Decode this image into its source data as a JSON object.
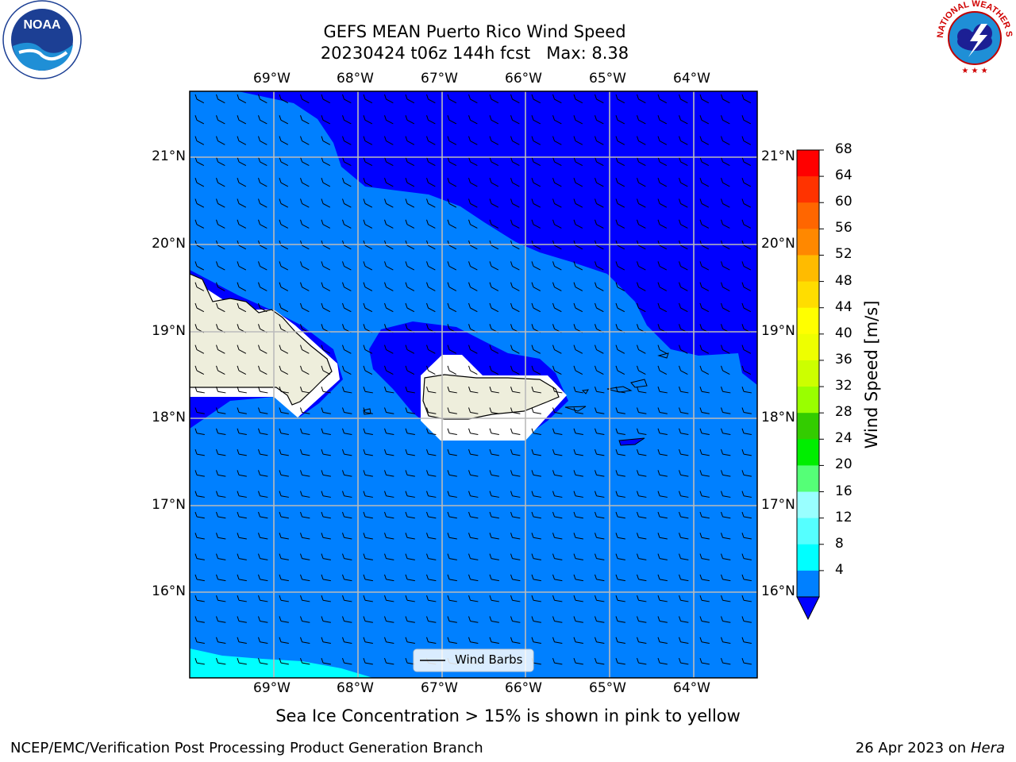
{
  "title": {
    "line1": "GEFS MEAN Puerto Rico Wind Speed",
    "line2": "20230424 t06z 144h fcst   Max: 8.38"
  },
  "logos": {
    "noara_text": "NOAA",
    "noara_ring_text": "NATIONAL OCEANIC AND ATMOSPHERIC ADMINISTRATION · U.S. DEPARTMENT OF COMMERCE",
    "nws_ring_text": "NATIONAL WEATHER SERVICE",
    "noara_icon": "noaa-logo",
    "nws_icon": "nws-logo"
  },
  "map": {
    "lon_labels": [
      "69°W",
      "68°W",
      "67°W",
      "66°W",
      "65°W",
      "64°W"
    ],
    "lat_labels": [
      "21°N",
      "20°N",
      "19°N",
      "18°N",
      "17°N",
      "16°N"
    ],
    "legend_label": "Wind Barbs",
    "colors": {
      "wind_4_8": "#0080ff",
      "wind_below_4": "#0000ff",
      "wind_8_12": "#00ffff",
      "land": "#eeeedc",
      "grid": "#bbbbbb"
    }
  },
  "colorbar": {
    "label": "Wind Speed [m/s]",
    "ticks": [
      "68",
      "64",
      "60",
      "56",
      "52",
      "48",
      "44",
      "40",
      "36",
      "32",
      "28",
      "24",
      "20",
      "16",
      "12",
      "8",
      "4"
    ],
    "colors": [
      "#ff0000",
      "#ff3300",
      "#ff6600",
      "#ff8800",
      "#ffbb00",
      "#ffdd00",
      "#ffff00",
      "#eeff00",
      "#ccff00",
      "#99ff00",
      "#33cc00",
      "#00ee00",
      "#55ff77",
      "#99ffff",
      "#55ffff",
      "#00ffff",
      "#0080ff"
    ],
    "under_color": "#0000ff"
  },
  "caption": "Sea Ice Concentration > 15% is shown in pink to yellow",
  "footer": {
    "left": "NCEP/EMC/Verification Post Processing Product Generation Branch",
    "right_prefix": "26 Apr 2023 on ",
    "right_host": "Hera"
  }
}
